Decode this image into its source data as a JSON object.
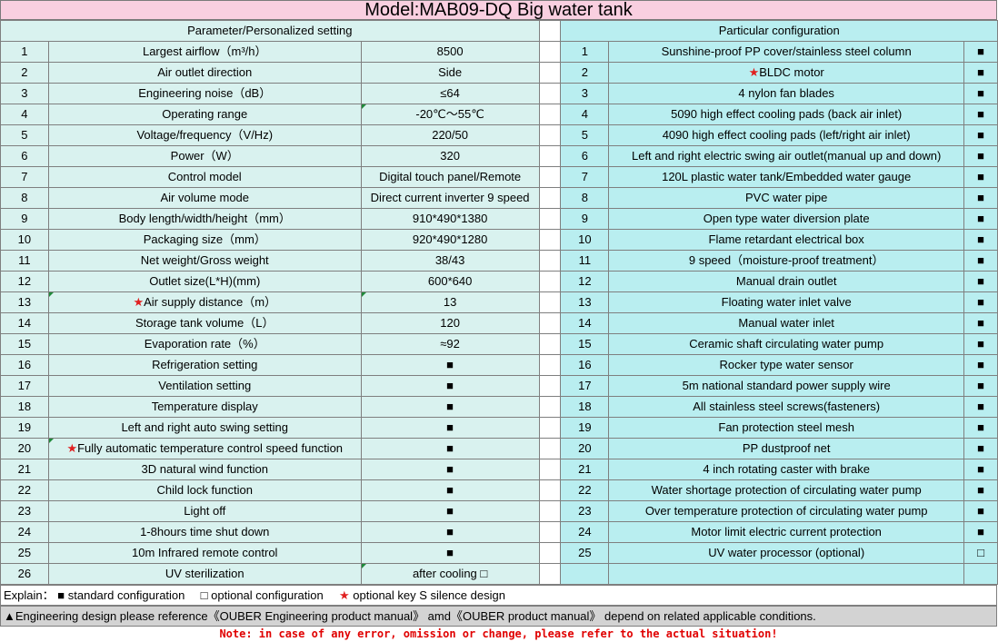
{
  "title": "Model:MAB09-DQ Big water tank",
  "left_header": "Parameter/Personalized setting",
  "right_header": "Particular configuration",
  "left_rows": [
    {
      "no": "1",
      "param": "Largest airflow（m³/h）",
      "value": "8500"
    },
    {
      "no": "2",
      "param": "Air outlet direction",
      "value": "Side"
    },
    {
      "no": "3",
      "param": "Engineering noise（dB）",
      "value": "≤64"
    },
    {
      "no": "4",
      "param": "Operating range",
      "value": "-20℃～55℃"
    },
    {
      "no": "5",
      "param": "Voltage/frequency（V/Hz)",
      "value": "220/50"
    },
    {
      "no": "6",
      "param": "Power（W）",
      "value": "320"
    },
    {
      "no": "7",
      "param": "Control model",
      "value": "Digital touch panel/Remote"
    },
    {
      "no": "8",
      "param": "Air volume mode",
      "value": "Direct current inverter 9 speed"
    },
    {
      "no": "9",
      "param": "Body length/width/height（mm）",
      "value": "910*490*1380"
    },
    {
      "no": "10",
      "param": "Packaging size（mm）",
      "value": "920*490*1280"
    },
    {
      "no": "11",
      "param": "Net weight/Gross weight",
      "value": "38/43"
    },
    {
      "no": "12",
      "param": "Outlet size(L*H)(mm)",
      "value": "600*640"
    },
    {
      "no": "13",
      "star": "★",
      "param": "Air supply distance（m）",
      "value": "13"
    },
    {
      "no": "14",
      "param": "Storage tank volume（L）",
      "value": "120"
    },
    {
      "no": "15",
      "param": "Evaporation rate（%）",
      "value": "≈92"
    },
    {
      "no": "16",
      "param": "Refrigeration setting",
      "value": "■"
    },
    {
      "no": "17",
      "param": "Ventilation setting",
      "value": "■"
    },
    {
      "no": "18",
      "param": "Temperature display",
      "value": "■"
    },
    {
      "no": "19",
      "param": "Left and right auto swing setting",
      "value": "■"
    },
    {
      "no": "20",
      "star": "★",
      "param": "Fully automatic temperature control speed function",
      "value": "■"
    },
    {
      "no": "21",
      "param": "3D natural wind function",
      "value": "■"
    },
    {
      "no": "22",
      "param": "Child lock function",
      "value": "■"
    },
    {
      "no": "23",
      "param": "Light off",
      "value": "■"
    },
    {
      "no": "24",
      "param": "1-8hours time shut down",
      "value": "■"
    },
    {
      "no": "25",
      "param": "10m Infrared remote control",
      "value": "■"
    },
    {
      "no": "26",
      "param": "UV sterilization",
      "value": "after cooling □"
    }
  ],
  "right_rows": [
    {
      "no": "1",
      "item": "Sunshine-proof PP cover/stainless steel column",
      "mark": "■"
    },
    {
      "no": "2",
      "star": "★",
      "item": "BLDC motor",
      "mark": "■"
    },
    {
      "no": "3",
      "item": "4 nylon fan blades",
      "mark": "■"
    },
    {
      "no": "4",
      "item": "5090 high effect cooling pads (back air inlet)",
      "mark": "■"
    },
    {
      "no": "5",
      "item": "4090 high effect cooling pads (left/right air inlet)",
      "mark": "■"
    },
    {
      "no": "6",
      "item": "Left and right electric swing air outlet(manual up and down)",
      "mark": "■"
    },
    {
      "no": "7",
      "item": "120L plastic water tank/Embedded water gauge",
      "mark": "■"
    },
    {
      "no": "8",
      "item": "PVC water pipe",
      "mark": "■"
    },
    {
      "no": "9",
      "item": "Open type water diversion plate",
      "mark": "■"
    },
    {
      "no": "10",
      "item": "Flame retardant electrical box",
      "mark": "■"
    },
    {
      "no": "11",
      "item": "9 speed（moisture-proof treatment）",
      "mark": "■"
    },
    {
      "no": "12",
      "item": "Manual drain outlet",
      "mark": "■"
    },
    {
      "no": "13",
      "item": "Floating water inlet valve",
      "mark": "■"
    },
    {
      "no": "14",
      "item": "Manual water inlet",
      "mark": "■"
    },
    {
      "no": "15",
      "item": "Ceramic shaft circulating water pump",
      "mark": "■"
    },
    {
      "no": "16",
      "item": "Rocker type water sensor",
      "mark": "■"
    },
    {
      "no": "17",
      "item": "5m national standard power supply wire",
      "mark": "■"
    },
    {
      "no": "18",
      "item": "All stainless steel screws(fasteners)",
      "mark": "■"
    },
    {
      "no": "19",
      "item": "Fan protection steel mesh",
      "mark": "■"
    },
    {
      "no": "20",
      "item": "PP dustproof net",
      "mark": "■"
    },
    {
      "no": "21",
      "item": "4 inch rotating caster with brake",
      "mark": "■"
    },
    {
      "no": "22",
      "item": "Water shortage protection of circulating water pump",
      "mark": "■"
    },
    {
      "no": "23",
      "item": "Over temperature protection of circulating water pump",
      "mark": "■"
    },
    {
      "no": "24",
      "item": "Motor limit electric current protection",
      "mark": "■"
    },
    {
      "no": "25",
      "item": "UV water processor (optional)",
      "mark": "□"
    }
  ],
  "legend": {
    "prefix": "Explain：",
    "standard_mark": "■",
    "standard_text": "standard configuration",
    "optional_mark": "□",
    "optional_text": "optional configuration",
    "key_star": "★",
    "key_text": "optional key S silence design"
  },
  "engineering_note": "▲Engineering design please reference《OUBER Engineering product manual》 amd《OUBER product manual》 depend on related applicable conditions.",
  "footer_note": "Note: in case of any error, omission or change, please refer to the actual situation!",
  "colors": {
    "title_bg": "#f9cfe0",
    "left_bg": "#d9f2ef",
    "right_bg": "#b9eef0",
    "eng_bar_bg": "#d3d3d3",
    "note_red": "#e00000",
    "star_red": "#e02020"
  }
}
